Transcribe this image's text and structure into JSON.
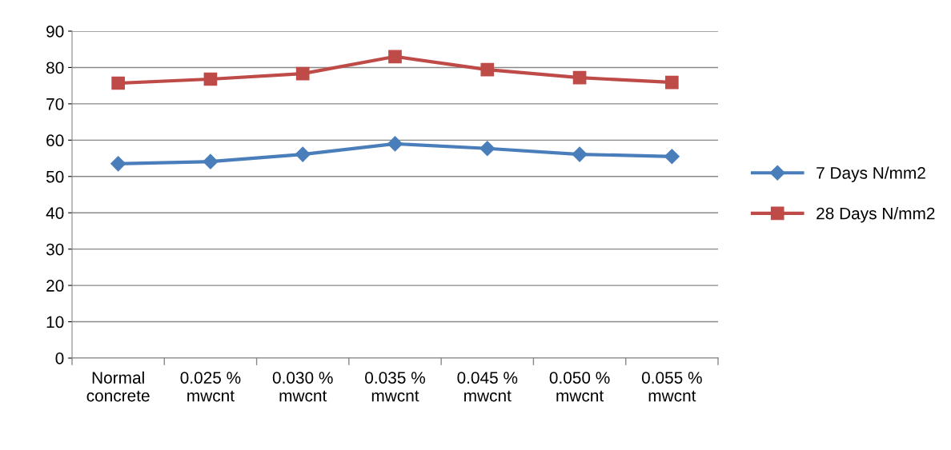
{
  "chart_data": {
    "type": "line",
    "categories": [
      "Normal\nconcrete",
      "0.025 %\nmwcnt",
      "0.030 %\nmwcnt",
      "0.035 %\nmwcnt",
      "0.045 %\nmwcnt",
      "0.050 %\nmwcnt",
      "0.055 %\nmwcnt"
    ],
    "series": [
      {
        "name": "7 Days N/mm2",
        "color": "#4a7ebb",
        "marker": "diamond",
        "values": [
          53.5,
          54.1,
          56.1,
          59.0,
          57.7,
          56.1,
          55.5
        ]
      },
      {
        "name": "28 Days N/mm2",
        "color": "#be4b48",
        "marker": "square",
        "values": [
          75.7,
          76.8,
          78.3,
          83.0,
          79.4,
          77.2,
          75.9
        ]
      }
    ],
    "ylim": [
      0,
      90
    ],
    "yticks": [
      0,
      10,
      20,
      30,
      40,
      50,
      60,
      70,
      80,
      90
    ],
    "grid": "y",
    "legend": "right"
  }
}
